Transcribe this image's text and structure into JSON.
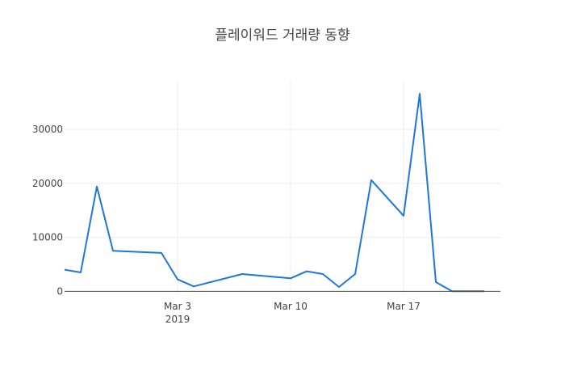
{
  "chart_data": {
    "type": "line",
    "title": "플레이워드 거래량 동향",
    "xlabel": "",
    "ylabel": "",
    "x_ticks": [
      {
        "date": "2019-03-03",
        "label": "Mar 3",
        "sublabel": "2019"
      },
      {
        "date": "2019-03-10",
        "label": "Mar 10",
        "sublabel": ""
      },
      {
        "date": "2019-03-17",
        "label": "Mar 17",
        "sublabel": ""
      }
    ],
    "y_ticks": [
      0,
      10000,
      20000,
      30000
    ],
    "xlim": [
      "2019-02-24",
      "2019-03-23"
    ],
    "ylim": [
      -400,
      39000
    ],
    "grid": true,
    "legend": "none",
    "line_color": "#1f77d8",
    "series": [
      {
        "x": [
          "2019-02-24",
          "2019-02-25",
          "2019-02-26",
          "2019-02-27",
          "2019-03-02",
          "2019-03-03",
          "2019-03-04",
          "2019-03-07",
          "2019-03-10",
          "2019-03-11",
          "2019-03-12",
          "2019-03-13",
          "2019-03-14",
          "2019-03-15",
          "2019-03-17",
          "2019-03-18",
          "2019-03-19",
          "2019-03-20",
          "2019-03-21",
          "2019-03-22"
        ],
        "y": [
          4000,
          3500,
          19400,
          7500,
          7100,
          2200,
          900,
          3200,
          2400,
          3700,
          3200,
          800,
          3200,
          20600,
          14000,
          36600,
          1700,
          0,
          0,
          0
        ]
      }
    ]
  }
}
